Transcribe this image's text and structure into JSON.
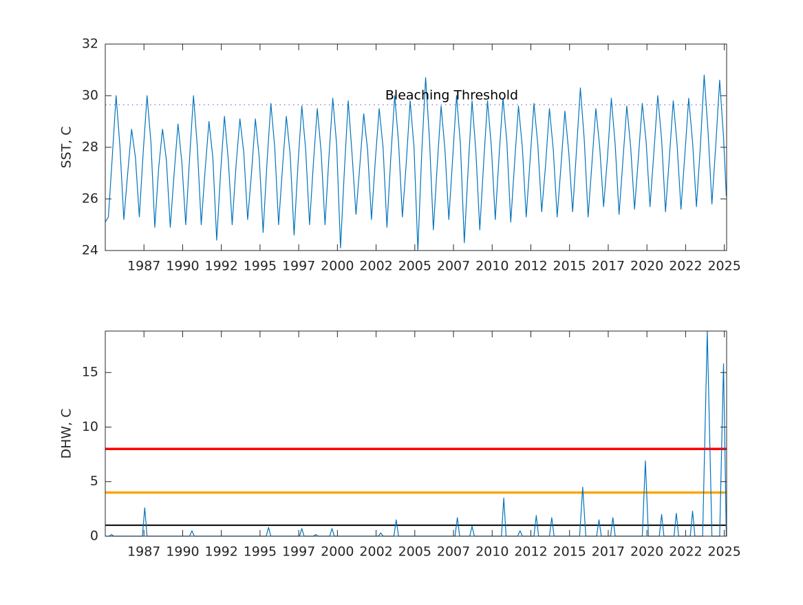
{
  "chart_data": [
    {
      "type": "line",
      "ylabel": "SST, C",
      "xlim": [
        1985.0,
        2025.15
      ],
      "xticks": [
        {
          "value": 1987.5,
          "label": "1987"
        },
        {
          "value": 1990,
          "label": "1990"
        },
        {
          "value": 1992.5,
          "label": "1992"
        },
        {
          "value": 1995,
          "label": "1995"
        },
        {
          "value": 1997.5,
          "label": "1997"
        },
        {
          "value": 2000,
          "label": "2000"
        },
        {
          "value": 2002.5,
          "label": "2002"
        },
        {
          "value": 2005,
          "label": "2005"
        },
        {
          "value": 2007.5,
          "label": "2007"
        },
        {
          "value": 2010,
          "label": "2010"
        },
        {
          "value": 2012.5,
          "label": "2012"
        },
        {
          "value": 2015,
          "label": "2015"
        },
        {
          "value": 2017.5,
          "label": "2017"
        },
        {
          "value": 2020,
          "label": "2020"
        },
        {
          "value": 2022.5,
          "label": "2022"
        },
        {
          "value": 2025,
          "label": "2025"
        }
      ],
      "ylim": [
        24,
        32
      ],
      "yticks": [
        24,
        26,
        28,
        30,
        32
      ],
      "grid": false,
      "threshold": {
        "value": 29.65,
        "label": "Bleaching Threshold",
        "color": "#7b6fd6"
      },
      "x": [
        1985.0,
        1985.2,
        1985.45,
        1985.7,
        1985.95,
        1986.2,
        1986.45,
        1986.7,
        1986.95,
        1987.2,
        1987.45,
        1987.7,
        1987.95,
        1988.2,
        1988.45,
        1988.7,
        1988.95,
        1989.2,
        1989.45,
        1989.7,
        1989.95,
        1990.2,
        1990.45,
        1990.7,
        1990.95,
        1991.2,
        1991.45,
        1991.7,
        1991.95,
        1992.2,
        1992.45,
        1992.7,
        1992.95,
        1993.2,
        1993.45,
        1993.7,
        1993.95,
        1994.2,
        1994.45,
        1994.7,
        1994.95,
        1995.2,
        1995.45,
        1995.7,
        1995.95,
        1996.2,
        1996.45,
        1996.7,
        1996.95,
        1997.2,
        1997.45,
        1997.7,
        1997.95,
        1998.2,
        1998.45,
        1998.7,
        1998.95,
        1999.2,
        1999.45,
        1999.7,
        1999.95,
        2000.2,
        2000.45,
        2000.7,
        2000.95,
        2001.2,
        2001.45,
        2001.7,
        2001.95,
        2002.2,
        2002.45,
        2002.7,
        2002.95,
        2003.2,
        2003.45,
        2003.7,
        2003.95,
        2004.2,
        2004.45,
        2004.7,
        2004.95,
        2005.2,
        2005.45,
        2005.7,
        2005.95,
        2006.2,
        2006.45,
        2006.7,
        2006.95,
        2007.2,
        2007.45,
        2007.7,
        2007.95,
        2008.2,
        2008.45,
        2008.7,
        2008.95,
        2009.2,
        2009.45,
        2009.7,
        2009.95,
        2010.2,
        2010.45,
        2010.7,
        2010.95,
        2011.2,
        2011.45,
        2011.7,
        2011.95,
        2012.2,
        2012.45,
        2012.7,
        2012.95,
        2013.2,
        2013.45,
        2013.7,
        2013.95,
        2014.2,
        2014.45,
        2014.7,
        2014.95,
        2015.2,
        2015.45,
        2015.7,
        2015.95,
        2016.2,
        2016.45,
        2016.7,
        2016.95,
        2017.2,
        2017.45,
        2017.7,
        2017.95,
        2018.2,
        2018.45,
        2018.7,
        2018.95,
        2019.2,
        2019.45,
        2019.7,
        2019.95,
        2020.2,
        2020.45,
        2020.7,
        2020.95,
        2021.2,
        2021.45,
        2021.7,
        2021.95,
        2022.2,
        2022.45,
        2022.7,
        2022.95,
        2023.2,
        2023.45,
        2023.7,
        2023.95,
        2024.2,
        2024.45,
        2024.7,
        2024.95,
        2025.13
      ],
      "series": [
        {
          "color": "#0072bd",
          "values": [
            25.1,
            25.3,
            27.6,
            30.0,
            28.0,
            25.2,
            27.0,
            28.7,
            27.6,
            25.3,
            27.8,
            30.0,
            28.2,
            24.9,
            27.2,
            28.7,
            27.5,
            24.9,
            27.0,
            28.9,
            27.4,
            25.0,
            27.6,
            30.0,
            28.0,
            25.0,
            27.1,
            29.0,
            27.6,
            24.4,
            27.0,
            29.2,
            27.5,
            25.0,
            27.3,
            29.1,
            27.8,
            25.2,
            27.0,
            29.1,
            27.6,
            24.7,
            27.4,
            29.7,
            28.0,
            25.0,
            27.2,
            29.2,
            27.7,
            24.6,
            27.3,
            29.6,
            27.9,
            25.0,
            27.4,
            29.5,
            27.8,
            25.0,
            27.6,
            29.9,
            28.1,
            24.1,
            27.1,
            29.8,
            27.7,
            25.4,
            27.3,
            29.3,
            27.9,
            25.2,
            27.5,
            29.5,
            28.0,
            24.9,
            27.6,
            30.0,
            28.2,
            25.3,
            27.4,
            29.8,
            28.0,
            24.0,
            27.8,
            30.7,
            28.3,
            24.8,
            27.3,
            29.6,
            27.9,
            25.2,
            27.6,
            30.0,
            28.1,
            24.3,
            27.2,
            29.8,
            27.8,
            24.8,
            27.4,
            29.8,
            28.0,
            25.2,
            27.7,
            29.9,
            28.2,
            25.1,
            27.4,
            29.6,
            28.0,
            25.3,
            27.5,
            29.7,
            28.1,
            25.5,
            27.3,
            29.5,
            27.9,
            25.3,
            27.3,
            29.4,
            27.8,
            25.5,
            27.9,
            30.3,
            28.3,
            25.3,
            27.4,
            29.5,
            28.0,
            25.7,
            27.6,
            29.9,
            28.1,
            25.4,
            27.5,
            29.6,
            28.0,
            25.6,
            27.6,
            29.7,
            28.2,
            25.7,
            27.8,
            30.0,
            28.3,
            25.5,
            27.6,
            29.8,
            28.1,
            25.6,
            27.7,
            29.9,
            28.2,
            25.7,
            28.0,
            30.8,
            28.6,
            25.8,
            28.1,
            30.6,
            28.4,
            26.1
          ]
        }
      ]
    },
    {
      "type": "line",
      "ylabel": "DHW, C",
      "xlim": [
        1985.0,
        2025.15
      ],
      "xticks": [
        {
          "value": 1987.5,
          "label": "1987"
        },
        {
          "value": 1990,
          "label": "1990"
        },
        {
          "value": 1992.5,
          "label": "1992"
        },
        {
          "value": 1995,
          "label": "1995"
        },
        {
          "value": 1997.5,
          "label": "1997"
        },
        {
          "value": 2000,
          "label": "2000"
        },
        {
          "value": 2002.5,
          "label": "2002"
        },
        {
          "value": 2005,
          "label": "2005"
        },
        {
          "value": 2007.5,
          "label": "2007"
        },
        {
          "value": 2010,
          "label": "2010"
        },
        {
          "value": 2012.5,
          "label": "2012"
        },
        {
          "value": 2015,
          "label": "2015"
        },
        {
          "value": 2017.5,
          "label": "2017"
        },
        {
          "value": 2020,
          "label": "2020"
        },
        {
          "value": 2022.5,
          "label": "2022"
        },
        {
          "value": 2025,
          "label": "2025"
        }
      ],
      "ylim": [
        0,
        18.8
      ],
      "yticks": [
        0,
        5,
        10,
        15
      ],
      "grid": false,
      "reference_lines": [
        {
          "value": 8,
          "color": "#ff0000"
        },
        {
          "value": 4,
          "color": "#ffa500"
        },
        {
          "value": 1,
          "color": "#000000"
        }
      ],
      "x": [
        1985.0,
        1985.25,
        1985.4,
        1985.55,
        1987.4,
        1987.55,
        1987.7,
        1990.45,
        1990.6,
        1990.75,
        1995.4,
        1995.55,
        1995.7,
        1997.55,
        1997.7,
        1997.85,
        1998.45,
        1998.6,
        1998.75,
        1999.5,
        1999.65,
        1999.8,
        2002.65,
        2002.8,
        2002.95,
        2003.65,
        2003.8,
        2003.95,
        2007.6,
        2007.75,
        2007.9,
        2008.55,
        2008.7,
        2008.85,
        2010.6,
        2010.75,
        2010.9,
        2011.65,
        2011.8,
        2011.95,
        2012.7,
        2012.85,
        2013.0,
        2013.7,
        2013.85,
        2014.0,
        2015.65,
        2015.85,
        2016.05,
        2016.75,
        2016.9,
        2017.05,
        2017.65,
        2017.8,
        2017.95,
        2019.7,
        2019.9,
        2020.1,
        2020.8,
        2020.95,
        2021.1,
        2021.75,
        2021.9,
        2022.05,
        2022.8,
        2022.95,
        2023.1,
        2023.6,
        2023.9,
        2024.2,
        2024.7,
        2024.95,
        2025.13
      ],
      "series": [
        {
          "color": "#0072bd",
          "values": [
            0,
            0,
            0.15,
            0,
            0,
            2.6,
            0,
            0,
            0.5,
            0,
            0,
            0.8,
            0,
            0,
            0.7,
            0,
            0,
            0.15,
            0,
            0,
            0.7,
            0,
            0,
            0.3,
            0,
            0,
            1.5,
            0,
            0,
            1.7,
            0,
            0,
            0.9,
            0,
            0,
            3.5,
            0,
            0,
            0.5,
            0,
            0,
            1.9,
            0,
            0,
            1.7,
            0,
            0,
            4.5,
            0,
            0,
            1.5,
            0,
            0,
            1.7,
            0,
            0,
            6.9,
            0,
            0,
            2.0,
            0,
            0,
            2.1,
            0,
            0,
            2.3,
            0,
            0,
            18.8,
            0,
            0,
            15.8,
            0
          ]
        }
      ]
    }
  ]
}
